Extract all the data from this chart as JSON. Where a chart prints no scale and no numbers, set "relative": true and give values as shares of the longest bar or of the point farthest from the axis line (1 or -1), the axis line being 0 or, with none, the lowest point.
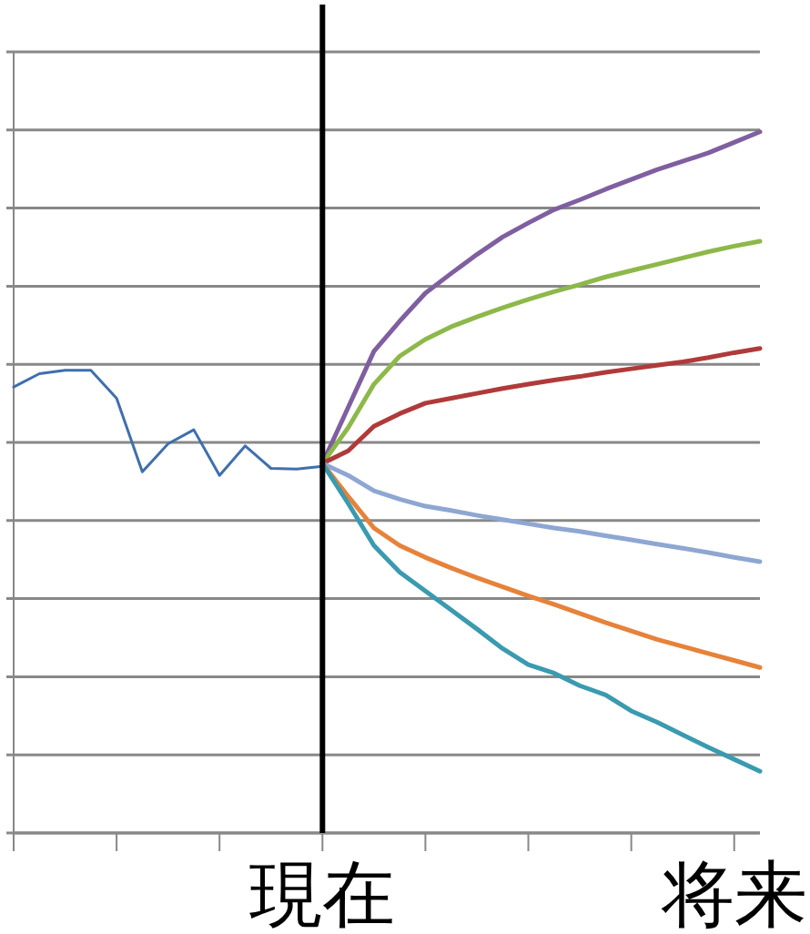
{
  "chart_data": {
    "type": "line",
    "relative": true,
    "grid": "y",
    "categories": [
      null,
      null,
      null,
      null,
      null,
      null,
      null,
      null,
      null,
      null,
      null,
      null,
      "現在",
      null,
      null,
      null,
      null,
      null,
      null,
      null,
      null,
      null,
      null,
      null,
      null,
      null,
      null,
      null,
      "将来",
      null
    ],
    "ref_lines": [
      {
        "axis": "x",
        "value": "現在",
        "color": "#000000"
      }
    ],
    "series": [
      {
        "color": "#3f6fad",
        "values": [
          0.636,
          0.655,
          0.66,
          0.66,
          0.62,
          0.515,
          0.555,
          0.575,
          0.51,
          0.552,
          0.52,
          0.519,
          0.523,
          null,
          null,
          null,
          null,
          null,
          null,
          null,
          null,
          null,
          null,
          null,
          null,
          null,
          null,
          null,
          null,
          null
        ]
      },
      {
        "color": "#7f5fa0",
        "values": [
          null,
          null,
          null,
          null,
          null,
          null,
          null,
          null,
          null,
          null,
          null,
          null,
          0.527,
          0.607,
          0.687,
          0.73,
          0.77,
          0.798,
          0.825,
          0.85,
          0.87,
          0.889,
          0.903,
          0.918,
          0.932,
          0.946,
          0.958,
          0.97,
          0.985,
          1
        ]
      },
      {
        "color": "#8db84a",
        "values": [
          null,
          null,
          null,
          null,
          null,
          null,
          null,
          null,
          null,
          null,
          null,
          null,
          0.527,
          0.578,
          0.64,
          0.68,
          0.704,
          0.722,
          0.736,
          0.749,
          0.761,
          0.772,
          0.782,
          0.793,
          0.802,
          0.811,
          0.82,
          0.829,
          0.837,
          0.844
        ]
      },
      {
        "color": "#b03a3a",
        "values": [
          null,
          null,
          null,
          null,
          null,
          null,
          null,
          null,
          null,
          null,
          null,
          null,
          0.527,
          0.545,
          0.58,
          0.598,
          0.613,
          0.62,
          0.627,
          0.634,
          0.64,
          0.646,
          0.651,
          0.657,
          0.662,
          0.667,
          0.672,
          0.678,
          0.685,
          0.691
        ]
      },
      {
        "color": "#8ea7d2",
        "values": [
          null,
          null,
          null,
          null,
          null,
          null,
          null,
          null,
          null,
          null,
          null,
          null,
          0.527,
          0.51,
          0.488,
          0.476,
          0.466,
          0.46,
          0.453,
          0.447,
          0.441,
          0.435,
          0.43,
          0.424,
          0.418,
          0.412,
          0.406,
          0.4,
          0.393,
          0.387
        ]
      },
      {
        "color": "#e6823a",
        "values": [
          null,
          null,
          null,
          null,
          null,
          null,
          null,
          null,
          null,
          null,
          null,
          null,
          0.527,
          0.48,
          0.435,
          0.41,
          0.393,
          0.378,
          0.364,
          0.351,
          0.338,
          0.326,
          0.313,
          0.3,
          0.288,
          0.276,
          0.266,
          0.256,
          0.246,
          0.236
        ]
      },
      {
        "color": "#3a9ab0",
        "values": [
          null,
          null,
          null,
          null,
          null,
          null,
          null,
          null,
          null,
          null,
          null,
          null,
          0.527,
          0.47,
          0.41,
          0.372,
          0.345,
          0.318,
          0.291,
          0.263,
          0.24,
          0.228,
          0.21,
          0.197,
          0.174,
          0.158,
          0.14,
          0.122,
          0.105,
          0.088
        ]
      }
    ]
  }
}
